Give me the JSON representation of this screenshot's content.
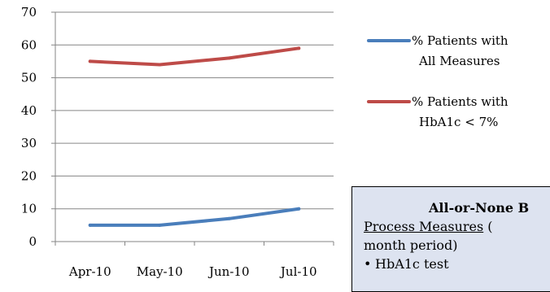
{
  "chart_data": {
    "type": "line",
    "categories": [
      "Apr-10",
      "May-10",
      "Jun-10",
      "Jul-10"
    ],
    "series": [
      {
        "name": "% Patients with All Measures",
        "values": [
          5,
          5,
          7,
          10
        ],
        "color": "#4a7ebb"
      },
      {
        "name": "% Patients with HbA1c < 7%",
        "values": [
          55,
          54,
          56,
          59
        ],
        "color": "#be4b48"
      }
    ],
    "ylim": [
      0,
      70
    ],
    "yticks": [
      0,
      10,
      20,
      30,
      40,
      50,
      60,
      70
    ],
    "grid": true,
    "legend_position": "right",
    "legend": [
      {
        "lines": [
          "% Patients with",
          "All Measures"
        ]
      },
      {
        "lines": [
          "% Patients with",
          "HbA1c < 7%"
        ]
      }
    ]
  },
  "info_box": {
    "title": "All-or-None B",
    "subtitle_underlined": "Process Measures",
    "subtitle_rest": " (",
    "period": "month period)",
    "bullet": "HbA1c test",
    "bullet_symbol": "•"
  }
}
